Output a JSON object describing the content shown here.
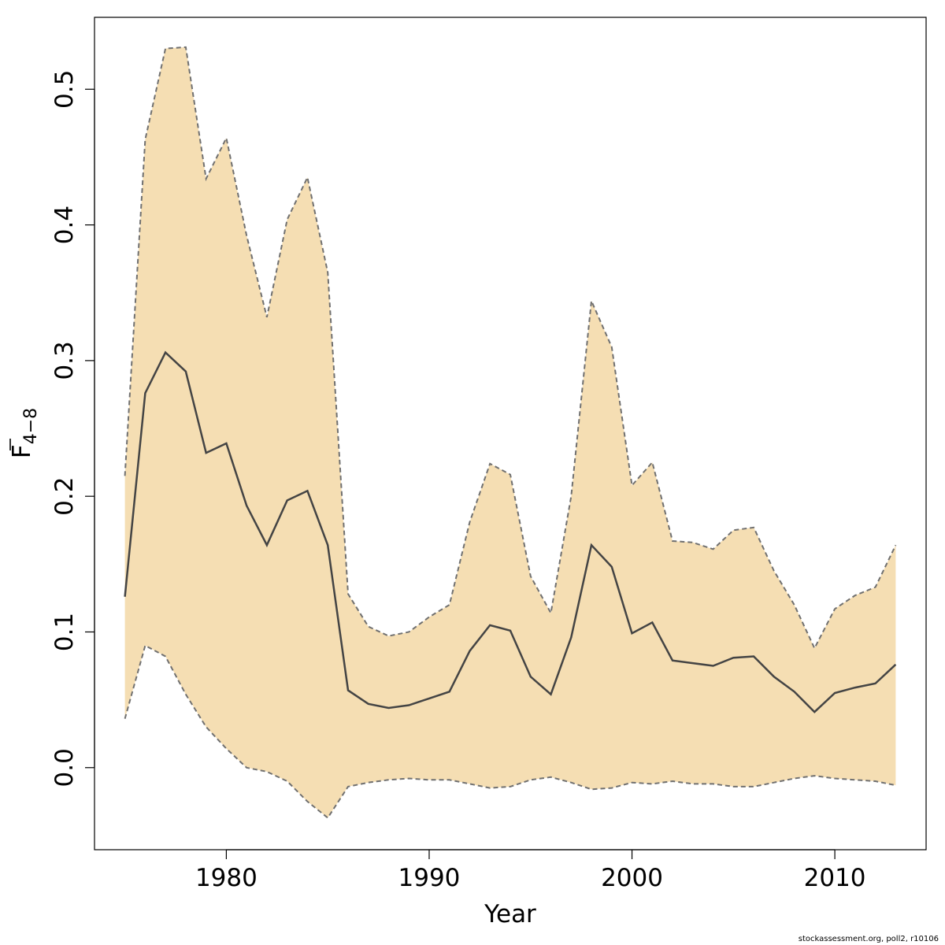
{
  "chart_data": {
    "type": "area",
    "xlabel": "Year",
    "ylabel_main": "F",
    "ylabel_sub": "4−8",
    "xlim": [
      1973.5,
      2014.5
    ],
    "ylim": [
      -0.0605,
      0.553
    ],
    "x_ticks": [
      1980,
      1990,
      2000,
      2010
    ],
    "y_ticks": [
      0.0,
      0.1,
      0.2,
      0.3,
      0.4,
      0.5
    ],
    "y_tick_labels": [
      "0.0",
      "0.1",
      "0.2",
      "0.3",
      "0.4",
      "0.5"
    ],
    "grid": false,
    "legend": "none",
    "colors": {
      "band": "#f5deb3",
      "estimate": "#444444",
      "bounds": "#707070"
    },
    "x": [
      1975,
      1976,
      1977,
      1978,
      1979,
      1980,
      1981,
      1982,
      1983,
      1984,
      1985,
      1986,
      1987,
      1988,
      1989,
      1990,
      1991,
      1992,
      1993,
      1994,
      1995,
      1996,
      1997,
      1998,
      1999,
      2000,
      2001,
      2002,
      2003,
      2004,
      2005,
      2006,
      2007,
      2008,
      2009,
      2010,
      2011,
      2012,
      2013
    ],
    "series": [
      {
        "role": "estimate",
        "values": [
          0.126,
          0.276,
          0.306,
          0.292,
          0.232,
          0.239,
          0.193,
          0.164,
          0.197,
          0.204,
          0.164,
          0.057,
          0.047,
          0.044,
          0.046,
          0.051,
          0.056,
          0.086,
          0.105,
          0.101,
          0.067,
          0.054,
          0.096,
          0.164,
          0.148,
          0.099,
          0.107,
          0.079,
          0.077,
          0.075,
          0.081,
          0.082,
          0.067,
          0.056,
          0.041,
          0.055,
          0.059,
          0.062,
          0.076
        ]
      },
      {
        "role": "upper",
        "values": [
          0.215,
          0.463,
          0.53,
          0.531,
          0.434,
          0.464,
          0.392,
          0.332,
          0.404,
          0.435,
          0.365,
          0.128,
          0.104,
          0.097,
          0.1,
          0.111,
          0.12,
          0.181,
          0.224,
          0.216,
          0.141,
          0.114,
          0.2,
          0.344,
          0.31,
          0.208,
          0.225,
          0.167,
          0.166,
          0.161,
          0.175,
          0.177,
          0.145,
          0.12,
          0.088,
          0.117,
          0.127,
          0.133,
          0.164
        ]
      },
      {
        "role": "lower",
        "values": [
          0.036,
          0.09,
          0.082,
          0.054,
          0.03,
          0.014,
          0.0,
          -0.003,
          -0.01,
          -0.025,
          -0.037,
          -0.014,
          -0.011,
          -0.009,
          -0.008,
          -0.009,
          -0.009,
          -0.012,
          -0.015,
          -0.014,
          -0.009,
          -0.007,
          -0.011,
          -0.016,
          -0.015,
          -0.011,
          -0.012,
          -0.01,
          -0.012,
          -0.012,
          -0.014,
          -0.014,
          -0.011,
          -0.008,
          -0.006,
          -0.008,
          -0.009,
          -0.01,
          -0.013
        ]
      }
    ]
  },
  "footer": "stockassessment.org, poll2, r10106"
}
